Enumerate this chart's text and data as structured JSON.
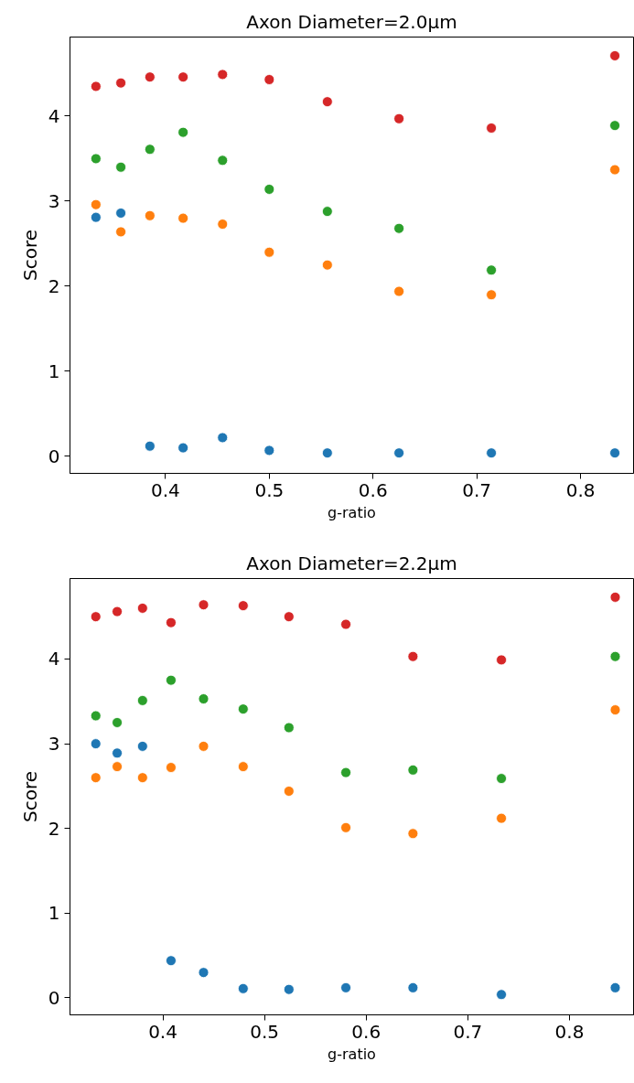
{
  "chart_data": [
    {
      "type": "scatter",
      "title": "Axon Diameter=2.0μm",
      "xlabel": "g-ratio",
      "ylabel": "Score",
      "marker": "circle",
      "grid": false,
      "x": [
        0.333,
        0.357,
        0.385,
        0.417,
        0.455,
        0.5,
        0.556,
        0.625,
        0.714,
        0.833
      ],
      "xlim": [
        0.308,
        0.851
      ],
      "ylim": [
        -0.2,
        4.93
      ],
      "xticks": [
        0.4,
        0.5,
        0.6,
        0.7,
        0.8
      ],
      "yticks": [
        0,
        1,
        2,
        3,
        4
      ],
      "series": [
        {
          "color": "#1f77b4",
          "values": [
            2.81,
            2.86,
            0.12,
            0.1,
            0.22,
            0.07,
            0.04,
            0.04,
            0.04,
            0.04
          ]
        },
        {
          "color": "#ff7f0e",
          "values": [
            2.96,
            2.64,
            2.83,
            2.8,
            2.73,
            2.4,
            2.25,
            1.94,
            1.9,
            3.37
          ]
        },
        {
          "color": "#2ca02c",
          "values": [
            3.5,
            3.4,
            3.61,
            3.81,
            3.48,
            3.14,
            2.88,
            2.68,
            2.19,
            3.89
          ]
        },
        {
          "color": "#d62728",
          "values": [
            4.35,
            4.39,
            4.46,
            4.46,
            4.49,
            4.43,
            4.17,
            3.97,
            3.86,
            4.71
          ]
        }
      ]
    },
    {
      "type": "scatter",
      "title": "Axon Diameter=2.2μm",
      "xlabel": "g-ratio",
      "ylabel": "Score",
      "marker": "circle",
      "grid": false,
      "x": [
        0.334,
        0.355,
        0.38,
        0.408,
        0.44,
        0.479,
        0.524,
        0.58,
        0.646,
        0.733,
        0.845
      ],
      "xlim": [
        0.3086,
        0.863
      ],
      "ylim": [
        -0.2,
        4.95
      ],
      "xticks": [
        0.4,
        0.5,
        0.6,
        0.7,
        0.8
      ],
      "yticks": [
        0,
        1,
        2,
        3,
        4
      ],
      "series": [
        {
          "color": "#1f77b4",
          "values": [
            3.0,
            2.89,
            2.97,
            0.44,
            0.3,
            0.11,
            0.1,
            0.12,
            0.12,
            0.04,
            0.12
          ]
        },
        {
          "color": "#ff7f0e",
          "values": [
            2.6,
            2.73,
            2.6,
            2.72,
            2.97,
            2.73,
            2.44,
            2.01,
            1.94,
            2.12,
            3.4
          ]
        },
        {
          "color": "#2ca02c",
          "values": [
            3.33,
            3.25,
            3.51,
            3.75,
            3.53,
            3.41,
            3.19,
            2.66,
            2.69,
            2.59,
            4.03
          ]
        },
        {
          "color": "#d62728",
          "values": [
            4.5,
            4.56,
            4.6,
            4.43,
            4.64,
            4.63,
            4.5,
            4.41,
            4.03,
            3.99,
            4.73
          ]
        }
      ]
    }
  ]
}
